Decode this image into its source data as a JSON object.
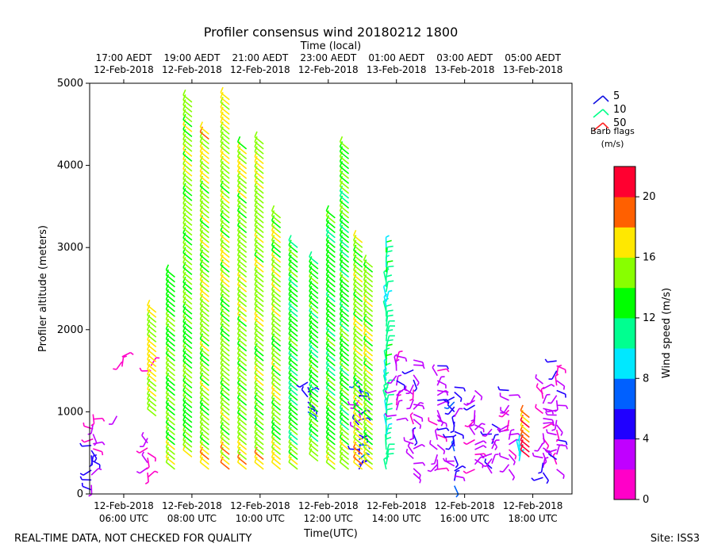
{
  "chart_data": {
    "type": "wind-barb",
    "title": "Profiler consensus wind 20180212 1800",
    "top_axis_label": "Time (local)",
    "xlabel": "Time(UTC)",
    "ylabel": "Profiler altitude (meters)",
    "x_range_hours_utc": [
      5.0,
      19.15
    ],
    "ylim": [
      0,
      5000
    ],
    "y_ticks": [
      0,
      1000,
      2000,
      3000,
      4000,
      5000
    ],
    "x_ticks_utc": [
      {
        "hour": 6,
        "line1": "12-Feb-2018",
        "line2": "06:00 UTC"
      },
      {
        "hour": 8,
        "line1": "12-Feb-2018",
        "line2": "08:00 UTC"
      },
      {
        "hour": 10,
        "line1": "12-Feb-2018",
        "line2": "10:00 UTC"
      },
      {
        "hour": 12,
        "line1": "12-Feb-2018",
        "line2": "12:00 UTC"
      },
      {
        "hour": 14,
        "line1": "12-Feb-2018",
        "line2": "14:00 UTC"
      },
      {
        "hour": 16,
        "line1": "12-Feb-2018",
        "line2": "16:00 UTC"
      },
      {
        "hour": 18,
        "line1": "12-Feb-2018",
        "line2": "18:00 UTC"
      }
    ],
    "x_ticks_local": [
      {
        "hour": 6,
        "line1": "17:00 AEDT",
        "line2": "12-Feb-2018"
      },
      {
        "hour": 8,
        "line1": "19:00 AEDT",
        "line2": "12-Feb-2018"
      },
      {
        "hour": 10,
        "line1": "21:00 AEDT",
        "line2": "12-Feb-2018"
      },
      {
        "hour": 12,
        "line1": "23:00 AEDT",
        "line2": "12-Feb-2018"
      },
      {
        "hour": 14,
        "line1": "01:00 AEDT",
        "line2": "13-Feb-2018"
      },
      {
        "hour": 16,
        "line1": "03:00 AEDT",
        "line2": "13-Feb-2018"
      },
      {
        "hour": 18,
        "line1": "05:00 AEDT",
        "line2": "13-Feb-2018"
      }
    ],
    "legend": {
      "entries": [
        {
          "label": "5",
          "color": "#1010e0"
        },
        {
          "label": "10",
          "color": "#00ff88"
        },
        {
          "label": "50",
          "color": "#ff2020"
        }
      ],
      "caption_line1": "Barb flags",
      "caption_line2": "(m/s)"
    },
    "colorbar": {
      "label": "Wind speed (m/s)",
      "range": [
        0,
        22
      ],
      "ticks": [
        0,
        4,
        8,
        12,
        16,
        20
      ],
      "colors": [
        "#ff00c8",
        "#c000ff",
        "#2000ff",
        "#0060ff",
        "#00e8ff",
        "#00ff90",
        "#00ff00",
        "#88ff00",
        "#ffe800",
        "#ff6000",
        "#ff0030"
      ]
    },
    "series": [
      {
        "time": 5.05,
        "alt_range": [
          50,
          600
        ],
        "speed": 5
      },
      {
        "time": 5.1,
        "alt_range": [
          550,
          1000
        ],
        "speed": 2
      },
      {
        "time": 5.8,
        "alt_range": [
          950,
          1000
        ],
        "speed": 2
      },
      {
        "time": 5.95,
        "alt_range": [
          1550,
          1700
        ],
        "speed": 2
      },
      {
        "time": 6.7,
        "alt_range": [
          200,
          700
        ],
        "speed": 2
      },
      {
        "time": 6.8,
        "alt_range": [
          1500,
          1600
        ],
        "speed": 2
      },
      {
        "time": 6.95,
        "alt_range": [
          950,
          2250
        ],
        "speed": 16
      },
      {
        "time": 7.5,
        "alt_range": [
          300,
          2650
        ],
        "speed": 14
      },
      {
        "time": 8.0,
        "alt_range": [
          450,
          4800
        ],
        "speed": 14
      },
      {
        "time": 8.5,
        "alt_range": [
          300,
          4400
        ],
        "speed": 15
      },
      {
        "time": 9.1,
        "alt_range": [
          300,
          4800
        ],
        "speed": 15
      },
      {
        "time": 9.6,
        "alt_range": [
          300,
          4200
        ],
        "speed": 15
      },
      {
        "time": 10.1,
        "alt_range": [
          300,
          4300
        ],
        "speed": 15
      },
      {
        "time": 10.6,
        "alt_range": [
          300,
          3400
        ],
        "speed": 15
      },
      {
        "time": 11.1,
        "alt_range": [
          300,
          3000
        ],
        "speed": 13
      },
      {
        "time": 11.4,
        "alt_range": [
          1000,
          1400
        ],
        "speed": 5
      },
      {
        "time": 11.7,
        "alt_range": [
          400,
          2800
        ],
        "speed": 13
      },
      {
        "time": 12.2,
        "alt_range": [
          300,
          3400
        ],
        "speed": 13
      },
      {
        "time": 12.6,
        "alt_range": [
          300,
          4250
        ],
        "speed": 13
      },
      {
        "time": 12.9,
        "alt_range": [
          300,
          1400
        ],
        "speed": 5
      },
      {
        "time": 13.0,
        "alt_range": [
          300,
          3100
        ],
        "speed": 15
      },
      {
        "time": 13.3,
        "alt_range": [
          300,
          2800
        ],
        "speed": 15
      },
      {
        "time": 13.7,
        "alt_range": [
          300,
          3050
        ],
        "speed": 11
      },
      {
        "time": 14.0,
        "alt_range": [
          900,
          1700
        ],
        "speed": 3
      },
      {
        "time": 14.5,
        "alt_range": [
          250,
          1650
        ],
        "speed": 3
      },
      {
        "time": 15.2,
        "alt_range": [
          300,
          1600
        ],
        "speed": 3
      },
      {
        "time": 15.7,
        "alt_range": [
          100,
          1300
        ],
        "speed": 5
      },
      {
        "time": 16.3,
        "alt_range": [
          300,
          1300
        ],
        "speed": 3
      },
      {
        "time": 16.8,
        "alt_range": [
          250,
          900
        ],
        "speed": 4
      },
      {
        "time": 17.3,
        "alt_range": [
          300,
          1300
        ],
        "speed": 3
      },
      {
        "time": 17.6,
        "alt_range": [
          400,
          600
        ],
        "speed": 9
      },
      {
        "time": 17.9,
        "alt_range": [
          450,
          950
        ],
        "speed": 19
      },
      {
        "time": 18.3,
        "alt_range": [
          200,
          1350
        ],
        "speed": 3
      },
      {
        "time": 18.7,
        "alt_range": [
          300,
          1650
        ],
        "speed": 3
      }
    ]
  },
  "footer": {
    "left": "REAL-TIME DATA, NOT CHECKED FOR QUALITY",
    "right": "Site: ISS3"
  }
}
